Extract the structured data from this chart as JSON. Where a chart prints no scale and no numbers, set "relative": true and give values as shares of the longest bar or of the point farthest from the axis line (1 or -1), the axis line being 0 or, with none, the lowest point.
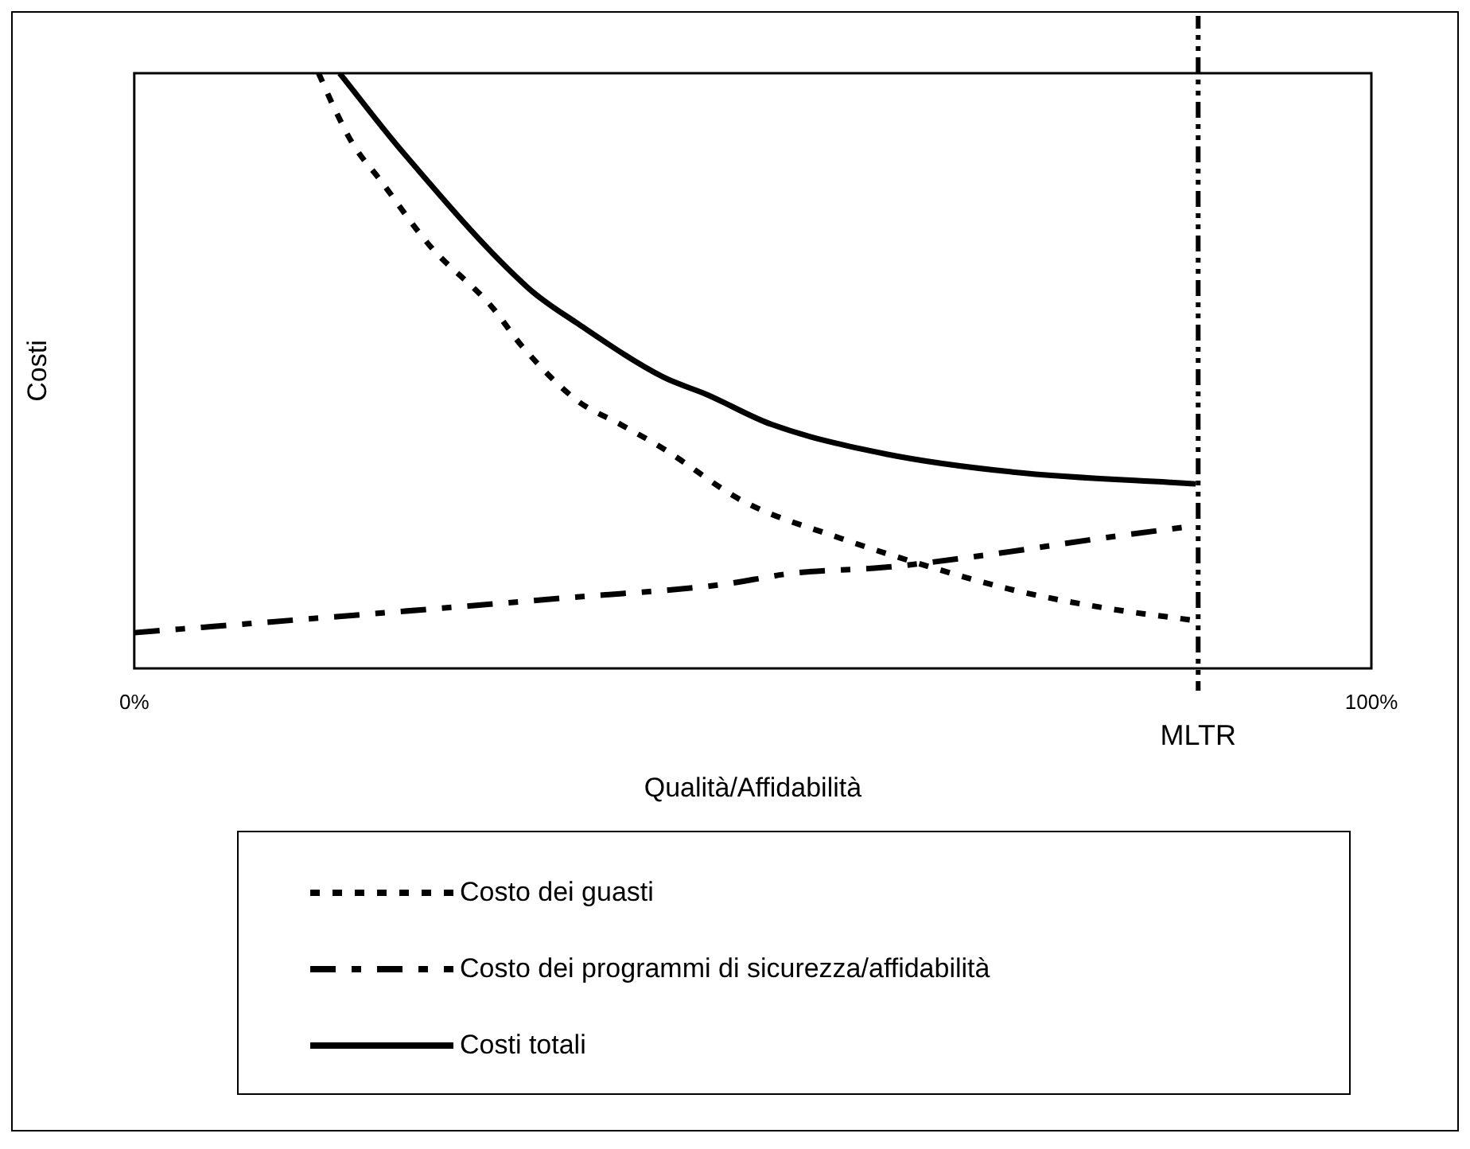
{
  "chart_data": {
    "type": "line",
    "relative": true,
    "xlabel": "Qualità/Affidabilità",
    "ylabel": "Costi",
    "xlim": [
      0,
      100
    ],
    "xticks": [
      {
        "value": 0,
        "label": "0%"
      },
      {
        "value": 100,
        "label": "100%"
      }
    ],
    "grid": false,
    "legend": "bottom",
    "marker": "none",
    "series": [
      {
        "name": "Costo dei guasti",
        "color": "#000000",
        "line_style": "dotted",
        "x": [
          14.9,
          16.2,
          17.7,
          19.9,
          23.9,
          28.8,
          31.4,
          35.8,
          39.3,
          42.7,
          49.3,
          56.9,
          64.4,
          71.4,
          78.9,
          85.9
        ],
        "values": [
          1.0,
          0.94,
          0.88,
          0.82,
          0.71,
          0.61,
          0.54,
          0.45,
          0.41,
          0.37,
          0.28,
          0.22,
          0.17,
          0.13,
          0.1,
          0.08
        ]
      },
      {
        "name": "Costo dei programmi di sicurezza/affidabilità",
        "color": "#000000",
        "line_style": "dashed",
        "x": [
          0,
          18.2,
          35.8,
          47.2,
          53.3,
          60.8,
          68.7,
          78.6,
          85.9
        ],
        "values": [
          0.06,
          0.09,
          0.12,
          0.14,
          0.16,
          0.17,
          0.19,
          0.22,
          0.24
        ]
      },
      {
        "name": "Costi totali",
        "color": "#000000",
        "line_style": "solid",
        "x": [
          16.6,
          21.6,
          31.8,
          35.8,
          42.7,
          46.3,
          51.5,
          60.8,
          71.0,
          85.8
        ],
        "values": [
          1.0,
          0.87,
          0.64,
          0.58,
          0.49,
          0.46,
          0.41,
          0.36,
          0.33,
          0.31
        ]
      }
    ],
    "ref_lines": [
      {
        "axis": "x",
        "value": 86,
        "label": "MLTR",
        "color": "#000000"
      }
    ]
  }
}
